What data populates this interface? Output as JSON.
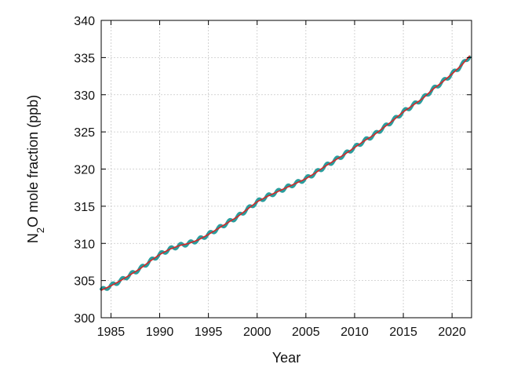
{
  "chart_data": {
    "type": "line",
    "xlabel": "Year",
    "ylabel": {
      "prefix": "N",
      "subscript": "2",
      "suffix": "O mole fraction (ppb)"
    },
    "xlim": [
      1984,
      2022
    ],
    "ylim": [
      300,
      340
    ],
    "x_ticks": [
      1985,
      1990,
      1995,
      2000,
      2005,
      2010,
      2015,
      2020
    ],
    "y_ticks": [
      300,
      305,
      310,
      315,
      320,
      325,
      330,
      335,
      340
    ],
    "grid": true,
    "series": [
      {
        "role": "monthly",
        "color": "#2a9d9d",
        "x": [
          1984.0,
          1985.0,
          1986.0,
          1987.0,
          1988.0,
          1989.0,
          1990.0,
          1991.0,
          1992.0,
          1993.0,
          1994.0,
          1995.0,
          1996.0,
          1997.0,
          1998.0,
          1999.0,
          2000.0,
          2001.0,
          2002.0,
          2003.0,
          2004.0,
          2005.0,
          2006.0,
          2007.0,
          2008.0,
          2009.0,
          2010.0,
          2011.0,
          2012.0,
          2013.0,
          2014.0,
          2015.0,
          2016.0,
          2017.0,
          2018.0,
          2019.0,
          2020.0,
          2021.0,
          2021.8
        ],
        "y": [
          303.7,
          304.3,
          305.0,
          305.8,
          306.6,
          307.6,
          308.5,
          309.2,
          309.7,
          310.0,
          310.5,
          311.2,
          312.0,
          312.8,
          313.6,
          314.6,
          315.6,
          316.3,
          316.9,
          317.5,
          318.1,
          318.7,
          319.5,
          320.4,
          321.2,
          322.0,
          322.9,
          323.8,
          324.6,
          325.6,
          326.6,
          327.7,
          328.6,
          329.5,
          330.7,
          331.7,
          332.8,
          334.0,
          335.2
        ],
        "seasonal_amplitude": 0.25
      },
      {
        "role": "trend",
        "color": "#d62728",
        "x": [
          1984.0,
          1985.0,
          1986.0,
          1987.0,
          1988.0,
          1989.0,
          1990.0,
          1991.0,
          1992.0,
          1993.0,
          1994.0,
          1995.0,
          1996.0,
          1997.0,
          1998.0,
          1999.0,
          2000.0,
          2001.0,
          2002.0,
          2003.0,
          2004.0,
          2005.0,
          2006.0,
          2007.0,
          2008.0,
          2009.0,
          2010.0,
          2011.0,
          2012.0,
          2013.0,
          2014.0,
          2015.0,
          2016.0,
          2017.0,
          2018.0,
          2019.0,
          2020.0,
          2021.0,
          2021.8
        ],
        "y": [
          303.7,
          304.3,
          305.0,
          305.8,
          306.6,
          307.6,
          308.5,
          309.2,
          309.7,
          310.0,
          310.5,
          311.2,
          312.0,
          312.8,
          313.6,
          314.6,
          315.6,
          316.3,
          316.9,
          317.5,
          318.1,
          318.7,
          319.5,
          320.4,
          321.2,
          322.0,
          322.9,
          323.8,
          324.6,
          325.6,
          326.6,
          327.7,
          328.6,
          329.5,
          330.7,
          331.7,
          332.8,
          334.0,
          335.2
        ]
      }
    ]
  }
}
